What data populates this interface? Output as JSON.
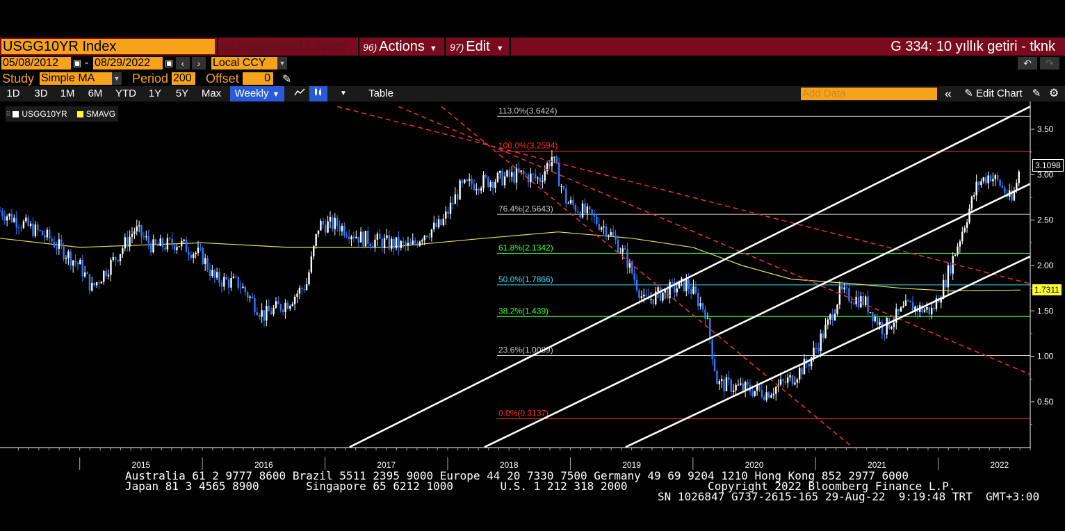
{
  "title_bar": {
    "ticker": "USGG10YR Index",
    "suggested_num": "94)",
    "suggested_label": "Suggested Charts",
    "actions_num": "96)",
    "actions_label": "Actions",
    "edit_num": "97)",
    "edit_label": "Edit",
    "right_title": "G 334: 10 yıllık getiri - tknk"
  },
  "range_row": {
    "start_date": "05/08/2012",
    "separator": "-",
    "end_date": "08/29/2022",
    "currency": "Local CCY"
  },
  "study_row": {
    "study_label": "Study",
    "study_value": "Simple MA",
    "period_label": "Period",
    "period_value": "200",
    "offset_label": "Offset",
    "offset_value": "0"
  },
  "toolbar": {
    "periods": [
      "1D",
      "3D",
      "1M",
      "6M",
      "YTD",
      "1Y",
      "5Y",
      "Max"
    ],
    "frequency": "Weekly",
    "table_label": "Table",
    "add_data_placeholder": "Add Data",
    "edit_chart_label": "Edit Chart"
  },
  "legend": {
    "items": [
      {
        "name": "USGG10YR",
        "color": "#ffffff"
      },
      {
        "name": "SMAVG",
        "color": "#ffff33"
      }
    ]
  },
  "chart_data": {
    "type": "candlestick",
    "x_ticks": [
      "2015",
      "2016",
      "2017",
      "2018",
      "2019",
      "2020",
      "2021",
      "2022"
    ],
    "y_ticks": [
      "3.50",
      "3.00",
      "2.50",
      "2.00",
      "1.50",
      "1.00",
      "0.50"
    ],
    "ylim": [
      0.0,
      3.75
    ],
    "last_price": "3.1098",
    "last_sma": "1.7311",
    "fibonacci": [
      {
        "label": "113.0%(3.6424)",
        "value": 3.6424,
        "color": "#c8c8c8"
      },
      {
        "label": "100.0%(3.2594)",
        "value": 3.2594,
        "color": "#ff2a2a"
      },
      {
        "label": "76.4%(2.5643)",
        "value": 2.5643,
        "color": "#c8c8c8"
      },
      {
        "label": "61.8%(2.1342)",
        "value": 2.1342,
        "color": "#33ff33"
      },
      {
        "label": "50.0%(1.7866)",
        "value": 1.7866,
        "color": "#33ddff"
      },
      {
        "label": "38.2%(1.439)",
        "value": 1.439,
        "color": "#33ff33"
      },
      {
        "label": "23.6%(1.0089)",
        "value": 1.0089,
        "color": "#c8c8c8"
      },
      {
        "label": "0.0%(0.3137)",
        "value": 0.3137,
        "color": "#ff2a2a"
      }
    ],
    "price_path": [
      [
        2014.35,
        2.6
      ],
      [
        2014.55,
        2.45
      ],
      [
        2014.75,
        2.3
      ],
      [
        2015.0,
        2.0
      ],
      [
        2015.1,
        1.75
      ],
      [
        2015.3,
        2.1
      ],
      [
        2015.45,
        2.4
      ],
      [
        2015.6,
        2.2
      ],
      [
        2015.8,
        2.25
      ],
      [
        2016.0,
        2.1
      ],
      [
        2016.1,
        1.85
      ],
      [
        2016.3,
        1.8
      ],
      [
        2016.5,
        1.45
      ],
      [
        2016.7,
        1.6
      ],
      [
        2016.85,
        1.8
      ],
      [
        2016.95,
        2.45
      ],
      [
        2017.1,
        2.45
      ],
      [
        2017.3,
        2.3
      ],
      [
        2017.5,
        2.25
      ],
      [
        2017.7,
        2.2
      ],
      [
        2017.8,
        2.35
      ],
      [
        2017.95,
        2.45
      ],
      [
        2018.1,
        2.85
      ],
      [
        2018.2,
        2.9
      ],
      [
        2018.4,
        2.95
      ],
      [
        2018.6,
        3.0
      ],
      [
        2018.75,
        2.95
      ],
      [
        2018.85,
        3.2
      ],
      [
        2018.97,
        2.7
      ],
      [
        2019.1,
        2.6
      ],
      [
        2019.3,
        2.4
      ],
      [
        2019.45,
        2.1
      ],
      [
        2019.6,
        1.6
      ],
      [
        2019.75,
        1.7
      ],
      [
        2019.95,
        1.8
      ],
      [
        2020.1,
        1.5
      ],
      [
        2020.2,
        0.7
      ],
      [
        2020.4,
        0.65
      ],
      [
        2020.6,
        0.6
      ],
      [
        2020.8,
        0.75
      ],
      [
        2020.95,
        0.95
      ],
      [
        2021.1,
        1.35
      ],
      [
        2021.2,
        1.7
      ],
      [
        2021.4,
        1.6
      ],
      [
        2021.55,
        1.3
      ],
      [
        2021.75,
        1.55
      ],
      [
        2021.95,
        1.5
      ],
      [
        2022.05,
        1.8
      ],
      [
        2022.2,
        2.4
      ],
      [
        2022.32,
        2.9
      ],
      [
        2022.42,
        3.0
      ],
      [
        2022.5,
        2.9
      ],
      [
        2022.6,
        2.7
      ],
      [
        2022.67,
        3.1
      ]
    ],
    "sma_path": [
      [
        2014.35,
        2.3
      ],
      [
        2015.0,
        2.2
      ],
      [
        2016.0,
        2.25
      ],
      [
        2016.7,
        2.2
      ],
      [
        2017.5,
        2.2
      ],
      [
        2018.3,
        2.3
      ],
      [
        2018.9,
        2.37
      ],
      [
        2019.5,
        2.3
      ],
      [
        2020.0,
        2.2
      ],
      [
        2020.4,
        2.0
      ],
      [
        2020.8,
        1.85
      ],
      [
        2021.3,
        1.8
      ],
      [
        2021.7,
        1.75
      ],
      [
        2022.1,
        1.72
      ],
      [
        2022.67,
        1.73
      ]
    ],
    "channel_lines": [
      {
        "x1": 2017.2,
        "y1": 0.0,
        "x2": 2022.75,
        "y2": 3.75
      },
      {
        "x1": 2018.3,
        "y1": 0.0,
        "x2": 2022.75,
        "y2": 2.9
      },
      {
        "x1": 2019.45,
        "y1": 0.0,
        "x2": 2022.75,
        "y2": 2.1
      }
    ],
    "fan_lines": [
      {
        "x1": 2017.1,
        "y1": 3.75,
        "x2": 2022.75,
        "y2": 1.8
      },
      {
        "x1": 2017.6,
        "y1": 3.75,
        "x2": 2022.75,
        "y2": 0.8
      },
      {
        "x1": 2017.95,
        "y1": 3.75,
        "x2": 2021.3,
        "y2": 0.0
      }
    ]
  },
  "footer": {
    "line1": "Australia 61 2 9777 8600 Brazil 5511 2395 9000 Europe 44 20 7330 7500 Germany 49 69 9204 1210 Hong Kong 852 2977 6000",
    "line2": "Japan 81 3 4565 8900       Singapore 65 6212 1000       U.S. 1 212 318 2000            Copyright 2022 Bloomberg Finance L.P.",
    "line3": "SN 1026847 G737-2615-165 29-Aug-22  9:19:48 TRT  GMT+3:00"
  }
}
